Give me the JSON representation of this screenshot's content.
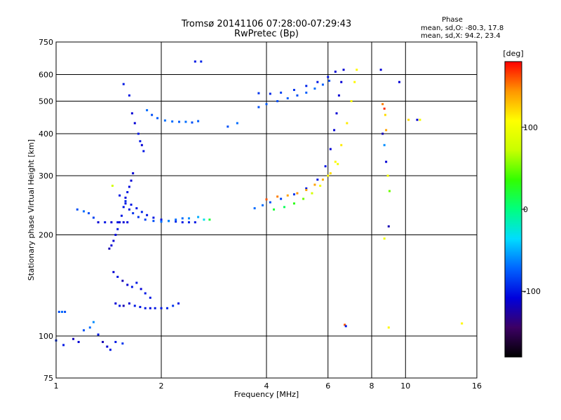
{
  "chart_data": {
    "type": "scatter",
    "title": "Tromsø 20141106 07:28:00-07:29:43",
    "subtitle": "RwPretec (Bp)",
    "xlabel": "Frequency [MHz]",
    "ylabel": "Stationary phase Virtual Height [km]",
    "x_scale": "log",
    "y_scale": "log",
    "xlim": [
      1,
      16
    ],
    "ylim": [
      75,
      750
    ],
    "x_ticks": [
      1,
      2,
      4,
      6,
      8,
      10,
      16
    ],
    "x_tick_labels": [
      "1",
      "2",
      "4",
      "6",
      "8",
      "10",
      "16"
    ],
    "y_ticks": [
      75,
      100,
      200,
      300,
      400,
      500,
      600,
      750
    ],
    "y_tick_labels": [
      "75",
      "100",
      "200",
      "300",
      "400",
      "500",
      "600",
      "750"
    ],
    "grid": true,
    "stats": {
      "header": "Phase",
      "o_mode": "mean, sd,O: -80.3, 17.8",
      "x_mode": "mean, sd,X:  94.2, 23.4"
    },
    "colorbar": {
      "label": "[deg]",
      "range": [
        -180,
        180
      ],
      "ticks": [
        -100,
        0,
        100
      ],
      "tick_labels": [
        "-100",
        "0",
        "100"
      ],
      "colors": [
        "#000000",
        "#3c0064",
        "#0000dc",
        "#0064ff",
        "#00dcff",
        "#00ff7f",
        "#32ff00",
        "#c8ff00",
        "#ffff00",
        "#ff9600",
        "#ff0000"
      ]
    },
    "series": [
      {
        "values": [
          [
            1.02,
            118,
            -80
          ],
          [
            1.04,
            118,
            -70
          ],
          [
            1.06,
            118,
            -80
          ],
          [
            1.0,
            97,
            -90
          ],
          [
            1.05,
            94,
            -100
          ],
          [
            1.12,
            98,
            -120
          ],
          [
            1.16,
            96,
            -110
          ],
          [
            1.2,
            104,
            -80
          ],
          [
            1.25,
            106,
            -70
          ],
          [
            1.28,
            110,
            -60
          ],
          [
            1.32,
            101,
            -100
          ],
          [
            1.36,
            96,
            -120
          ],
          [
            1.4,
            93,
            -110
          ],
          [
            1.43,
            91,
            -100
          ],
          [
            1.48,
            96,
            -100
          ],
          [
            1.55,
            95,
            -90
          ]
        ]
      },
      {
        "values": [
          [
            1.15,
            238,
            -80
          ],
          [
            1.2,
            235,
            -70
          ],
          [
            1.24,
            232,
            -80
          ],
          [
            1.28,
            225,
            -85
          ]
        ]
      },
      {
        "values": [
          [
            1.32,
            218,
            -110
          ],
          [
            1.38,
            218,
            -100
          ],
          [
            1.44,
            218,
            -110
          ],
          [
            1.5,
            218,
            -100
          ],
          [
            1.56,
            218,
            -110
          ],
          [
            1.6,
            218,
            -105
          ]
        ]
      },
      {
        "values": [
          [
            1.42,
            182,
            -120
          ],
          [
            1.44,
            186,
            -110
          ],
          [
            1.46,
            192,
            -110
          ],
          [
            1.48,
            200,
            -105
          ],
          [
            1.5,
            208,
            -100
          ],
          [
            1.52,
            218,
            -110
          ],
          [
            1.54,
            228,
            -100
          ],
          [
            1.56,
            242,
            -100
          ],
          [
            1.58,
            258,
            -105
          ],
          [
            1.6,
            268,
            -100
          ],
          [
            1.62,
            278,
            -105
          ],
          [
            1.64,
            290,
            -110
          ],
          [
            1.66,
            305,
            -110
          ]
        ]
      },
      {
        "values": [
          [
            1.52,
            262,
            -100
          ],
          [
            1.58,
            252,
            -95
          ],
          [
            1.64,
            246,
            -100
          ],
          [
            1.7,
            240,
            -100
          ],
          [
            1.76,
            234,
            -95
          ],
          [
            1.82,
            229,
            -100
          ],
          [
            1.9,
            225,
            -100
          ],
          [
            2.0,
            222,
            -100
          ],
          [
            2.1,
            220,
            -100
          ],
          [
            2.2,
            219,
            -95
          ],
          [
            2.3,
            218,
            -100
          ],
          [
            2.4,
            218,
            -95
          ],
          [
            2.5,
            218,
            -100
          ]
        ]
      },
      {
        "values": [
          [
            1.58,
            248,
            -100
          ],
          [
            1.62,
            238,
            -100
          ],
          [
            1.66,
            232,
            -90
          ],
          [
            1.72,
            226,
            -90
          ],
          [
            1.8,
            222,
            -85
          ],
          [
            1.9,
            220,
            -80
          ],
          [
            2.0,
            219,
            -70
          ],
          [
            2.1,
            220,
            -60
          ],
          [
            2.2,
            222,
            -70
          ],
          [
            2.3,
            224,
            -70
          ],
          [
            2.4,
            224,
            -60
          ],
          [
            2.55,
            226,
            -50
          ],
          [
            2.65,
            222,
            -30
          ],
          [
            2.75,
            222,
            20
          ]
        ]
      },
      {
        "values": [
          [
            1.56,
            562,
            -100
          ],
          [
            1.62,
            520,
            -100
          ],
          [
            1.65,
            460,
            -110
          ],
          [
            1.68,
            430,
            -110
          ],
          [
            1.72,
            400,
            -100
          ],
          [
            1.74,
            380,
            -100
          ],
          [
            1.76,
            370,
            -110
          ],
          [
            1.78,
            355,
            -100
          ]
        ]
      },
      {
        "values": [
          [
            1.82,
            470,
            -70
          ],
          [
            1.88,
            455,
            -80
          ],
          [
            1.95,
            445,
            -75
          ],
          [
            2.05,
            438,
            -70
          ],
          [
            2.15,
            435,
            -70
          ],
          [
            2.25,
            434,
            -75
          ],
          [
            2.35,
            434,
            -70
          ],
          [
            2.45,
            432,
            -80
          ],
          [
            2.55,
            436,
            -75
          ]
        ]
      },
      {
        "values": [
          [
            1.46,
            155,
            -110
          ],
          [
            1.5,
            150,
            -100
          ],
          [
            1.55,
            146,
            -120
          ],
          [
            1.6,
            142,
            -110
          ],
          [
            1.65,
            140,
            -100
          ],
          [
            1.7,
            144,
            -100
          ],
          [
            1.75,
            138,
            -110
          ],
          [
            1.8,
            134,
            -100
          ],
          [
            1.86,
            130,
            -100
          ]
        ]
      },
      {
        "values": [
          [
            1.48,
            125,
            -110
          ],
          [
            1.52,
            123,
            -100
          ],
          [
            1.56,
            123,
            -120
          ],
          [
            1.62,
            125,
            -110
          ],
          [
            1.68,
            123,
            -100
          ],
          [
            1.74,
            122,
            -100
          ],
          [
            1.8,
            121,
            -100
          ],
          [
            1.86,
            121,
            -105
          ],
          [
            1.92,
            121,
            -100
          ],
          [
            2.0,
            121,
            -100
          ],
          [
            2.08,
            121,
            -95
          ],
          [
            2.16,
            123,
            -90
          ],
          [
            2.24,
            125,
            -100
          ]
        ]
      },
      {
        "values": [
          [
            3.7,
            240,
            -70
          ],
          [
            3.9,
            245,
            -70
          ],
          [
            4.1,
            250,
            -80
          ],
          [
            4.4,
            256,
            -85
          ],
          [
            4.8,
            264,
            -90
          ],
          [
            5.2,
            275,
            -100
          ],
          [
            5.6,
            292,
            -100
          ],
          [
            5.9,
            320,
            -100
          ],
          [
            6.1,
            360,
            -110
          ],
          [
            6.25,
            410,
            -110
          ],
          [
            6.35,
            460,
            -110
          ],
          [
            6.45,
            520,
            -110
          ],
          [
            6.55,
            570,
            -110
          ],
          [
            6.65,
            620,
            -110
          ]
        ]
      },
      {
        "values": [
          [
            4.2,
            238,
            20
          ],
          [
            4.5,
            242,
            10
          ],
          [
            4.8,
            248,
            30
          ],
          [
            5.1,
            256,
            50
          ],
          [
            5.4,
            266,
            80
          ],
          [
            5.7,
            280,
            100
          ],
          [
            6.0,
            300,
            110
          ],
          [
            6.3,
            330,
            110
          ],
          [
            6.55,
            370,
            115
          ],
          [
            6.8,
            430,
            115
          ],
          [
            7.0,
            500,
            110
          ],
          [
            7.15,
            570,
            110
          ],
          [
            7.25,
            620,
            110
          ]
        ]
      },
      {
        "values": [
          [
            4.0,
            255,
            160
          ],
          [
            4.3,
            260,
            150
          ],
          [
            4.6,
            262,
            140
          ],
          [
            4.9,
            266,
            145
          ],
          [
            5.2,
            272,
            140
          ],
          [
            5.5,
            282,
            140
          ],
          [
            5.8,
            292,
            135
          ],
          [
            6.1,
            305,
            120
          ],
          [
            6.4,
            325,
            100
          ]
        ]
      },
      {
        "values": [
          [
            3.8,
            480,
            -80
          ],
          [
            4.0,
            490,
            -75
          ],
          [
            4.3,
            500,
            -80
          ],
          [
            4.6,
            510,
            -75
          ],
          [
            4.9,
            520,
            -80
          ],
          [
            5.2,
            530,
            -75
          ],
          [
            5.5,
            545,
            -70
          ],
          [
            5.8,
            560,
            -75
          ],
          [
            6.05,
            575,
            -80
          ]
        ]
      },
      {
        "values": [
          [
            3.8,
            528,
            -90
          ],
          [
            4.1,
            526,
            -95
          ],
          [
            4.4,
            530,
            -85
          ],
          [
            4.8,
            540,
            -90
          ],
          [
            5.2,
            555,
            -95
          ],
          [
            5.6,
            570,
            -100
          ],
          [
            6.0,
            590,
            -100
          ],
          [
            6.3,
            612,
            -110
          ]
        ]
      },
      {
        "values": [
          [
            8.5,
            620,
            -110
          ],
          [
            8.6,
            490,
            150
          ],
          [
            8.7,
            475,
            170
          ],
          [
            8.75,
            455,
            120
          ],
          [
            8.8,
            410,
            140
          ],
          [
            8.6,
            400,
            -120
          ],
          [
            8.7,
            370,
            -60
          ],
          [
            8.8,
            330,
            -110
          ],
          [
            8.9,
            300,
            100
          ],
          [
            9.0,
            270,
            50
          ],
          [
            8.95,
            212,
            -120
          ],
          [
            8.7,
            195,
            100
          ],
          [
            8.95,
            106,
            110
          ],
          [
            9.6,
            570,
            -110
          ],
          [
            10.2,
            440,
            120
          ],
          [
            10.8,
            440,
            -110
          ],
          [
            11.0,
            440,
            100
          ],
          [
            14.5,
            109,
            110
          ],
          [
            6.7,
            108,
            160
          ],
          [
            6.75,
            107,
            -100
          ]
        ]
      },
      {
        "values": [
          [
            2.5,
            656,
            -100
          ],
          [
            2.6,
            656,
            -95
          ],
          [
            3.1,
            420,
            -80
          ],
          [
            3.3,
            430,
            -70
          ],
          [
            1.45,
            280,
            80
          ]
        ]
      }
    ]
  }
}
